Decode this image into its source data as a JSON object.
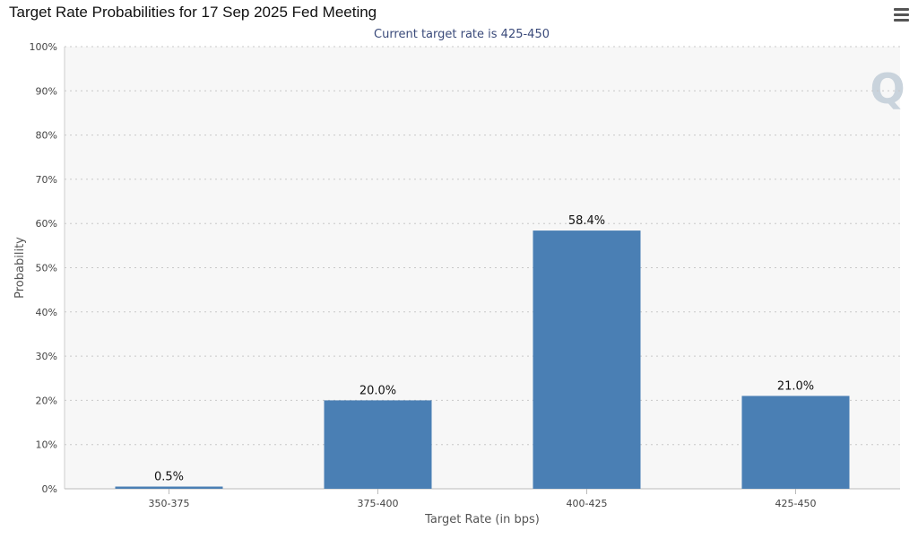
{
  "title": "Target Rate Probabilities for 17 Sep 2025 Fed Meeting",
  "subtitle": "Current target rate is 425-450",
  "menu_icon": "hamburger-menu-icon",
  "watermark_logo": "Q",
  "colors": {
    "bar": "#4a7fb4",
    "plot_background": "#f7f7f7",
    "grid": "#c8c8c8",
    "subtitle": "#3a4a7a",
    "watermark": "#c9d3dc"
  },
  "chart_data": {
    "type": "bar",
    "title": "Target Rate Probabilities for 17 Sep 2025 Fed Meeting",
    "subtitle": "Current target rate is 425-450",
    "xlabel": "Target Rate (in bps)",
    "ylabel": "Probability",
    "categories": [
      "350-375",
      "375-400",
      "400-425",
      "425-450"
    ],
    "values": [
      0.5,
      20.0,
      58.4,
      21.0
    ],
    "data_labels": [
      "0.5%",
      "20.0%",
      "58.4%",
      "21.0%"
    ],
    "ylim": [
      0,
      100
    ],
    "yticks": [
      0,
      10,
      20,
      30,
      40,
      50,
      60,
      70,
      80,
      90,
      100
    ],
    "ytick_labels": [
      "0%",
      "10%",
      "20%",
      "30%",
      "40%",
      "50%",
      "60%",
      "70%",
      "80%",
      "90%",
      "100%"
    ],
    "grid": true,
    "legend": "none"
  }
}
